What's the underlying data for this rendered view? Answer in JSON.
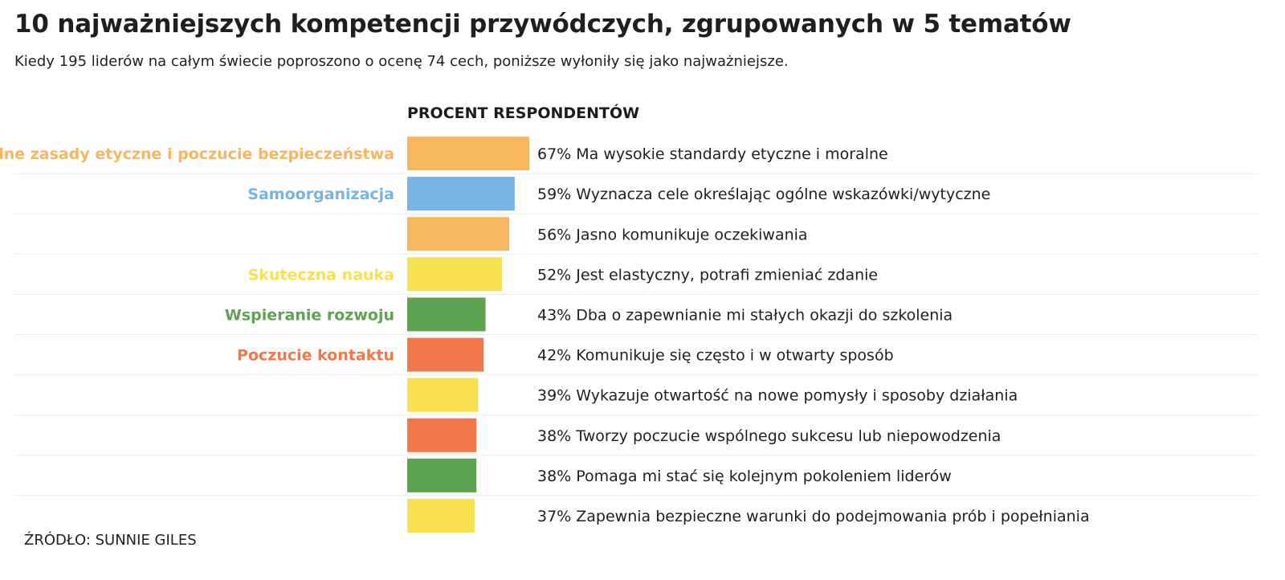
{
  "title": "10 najważniejszych kompetencji przywódczych, zgrupowanych w 5 tematów",
  "subtitle": "Kiedy 195 liderów na całym świecie poproszono o ocenę 74 cech, poniższe wyłoniły się jako najważniejsze.",
  "source": "ŹRÓDŁO: SUNNIE GILES",
  "chart_data": {
    "type": "bar",
    "orientation": "horizontal",
    "column_header": "PROCENT RESPONDENTÓW",
    "value_suffix": "%",
    "xlim": [
      0,
      67
    ],
    "grid": false,
    "themes": [
      {
        "name": "Silne zasady etyczne i poczucie bezpieczeństwa",
        "color": "#F8B75C"
      },
      {
        "name": "Samoorganizacja",
        "color": "#76B5E4"
      },
      {
        "name": "Skuteczna nauka",
        "color": "#F8E150"
      },
      {
        "name": "Wspieranie rozwoju",
        "color": "#5EA34F"
      },
      {
        "name": "Poczucie kontaktu",
        "color": "#F2774B"
      }
    ],
    "items": [
      {
        "theme_label": "Silne zasady etyczne i poczucie bezpieczeństwa",
        "theme": 0,
        "value": 67,
        "label": "Ma wysokie standardy etyczne i moralne"
      },
      {
        "theme_label": "Samoorganizacja",
        "theme": 1,
        "value": 59,
        "label": "Wyznacza cele określając ogólne wskazówki/wytyczne"
      },
      {
        "theme_label": "",
        "theme": 0,
        "value": 56,
        "label": "Jasno komunikuje oczekiwania"
      },
      {
        "theme_label": "Skuteczna nauka",
        "theme": 2,
        "value": 52,
        "label": "Jest elastyczny, potrafi zmieniać zdanie"
      },
      {
        "theme_label": "Wspieranie rozwoju",
        "theme": 3,
        "value": 43,
        "label": "Dba o zapewnianie mi stałych okazji do szkolenia"
      },
      {
        "theme_label": "Poczucie kontaktu",
        "theme": 4,
        "value": 42,
        "label": "Komunikuje się często i w otwarty sposób"
      },
      {
        "theme_label": "",
        "theme": 2,
        "value": 39,
        "label": "Wykazuje otwartość na nowe pomysły i sposoby działania"
      },
      {
        "theme_label": "",
        "theme": 4,
        "value": 38,
        "label": "Tworzy poczucie wspólnego sukcesu lub niepowodzenia"
      },
      {
        "theme_label": "",
        "theme": 3,
        "value": 38,
        "label": "Pomaga mi stać się kolejnym pokoleniem liderów"
      },
      {
        "theme_label": "",
        "theme": 2,
        "value": 37,
        "label": "Zapewnia bezpieczne warunki do podejmowania prób i popełniania"
      }
    ]
  }
}
